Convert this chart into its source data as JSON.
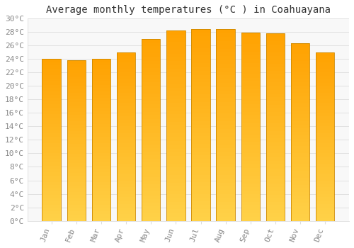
{
  "title": "Average monthly temperatures (°C ) in Coahuayana",
  "months": [
    "Jan",
    "Feb",
    "Mar",
    "Apr",
    "May",
    "Jun",
    "Jul",
    "Aug",
    "Sep",
    "Oct",
    "Nov",
    "Dec"
  ],
  "temperatures": [
    24.0,
    23.8,
    24.0,
    25.0,
    27.0,
    28.2,
    28.5,
    28.4,
    27.9,
    27.8,
    26.4,
    25.0
  ],
  "bar_color_top": "#FFA500",
  "bar_color_bottom": "#FFD060",
  "bar_edge_color": "#CC8800",
  "background_color": "#FFFFFF",
  "plot_bg_color": "#F8F8F8",
  "grid_color": "#DDDDDD",
  "ylim": [
    0,
    30
  ],
  "ytick_step": 2,
  "title_fontsize": 10,
  "tick_fontsize": 8,
  "tick_color": "#888888",
  "font_family": "monospace",
  "bar_width": 0.75
}
